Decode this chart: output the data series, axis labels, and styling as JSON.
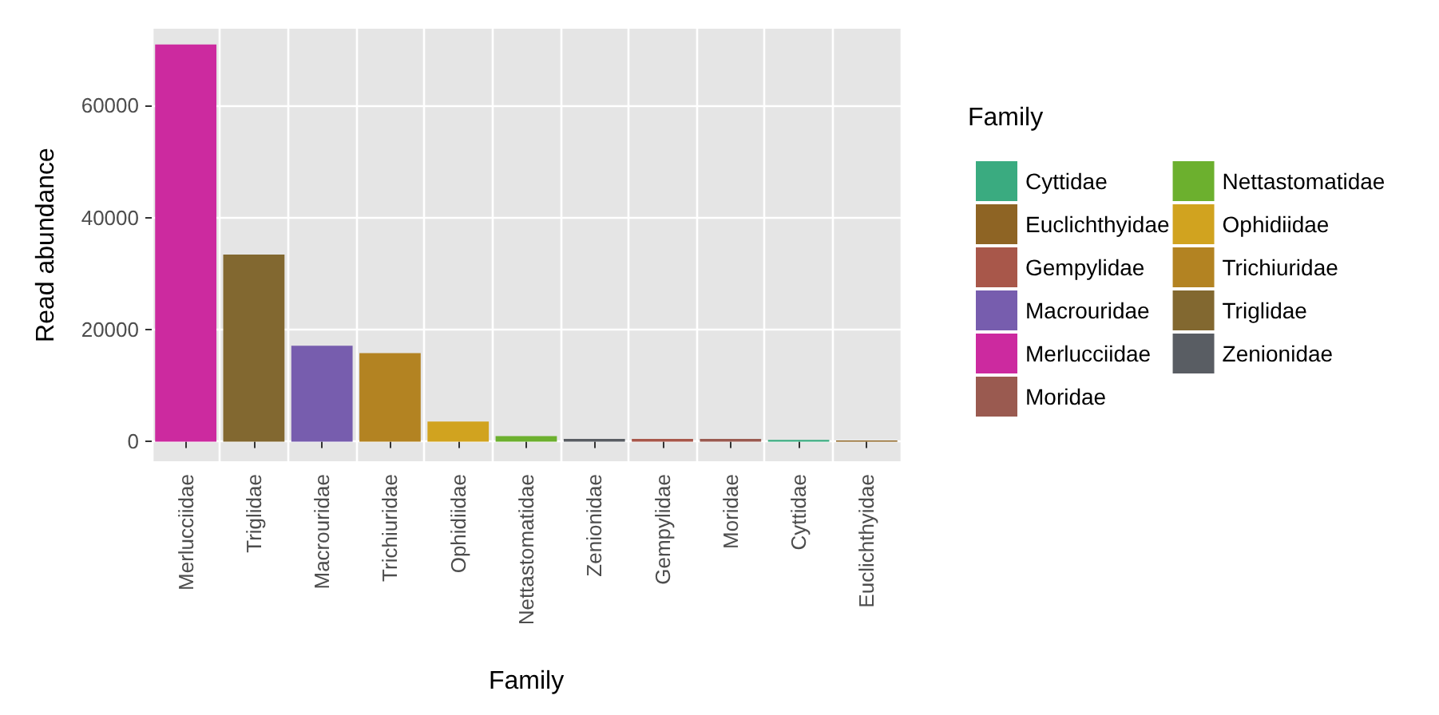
{
  "chart_data": {
    "type": "bar",
    "xlabel": "Family",
    "ylabel": "Read abundance",
    "legend_title": "Family",
    "categories": [
      "Merlucciidae",
      "Triglidae",
      "Macrouridae",
      "Trichiuridae",
      "Ophidiidae",
      "Nettastomatidae",
      "Zenionidae",
      "Gempylidae",
      "Moridae",
      "Cyttidae",
      "Euclichthyidae"
    ],
    "series": [
      {
        "name": "Cyttidae",
        "color": "#3aab80",
        "values": [
          null,
          null,
          null,
          null,
          null,
          null,
          null,
          null,
          null,
          300,
          null
        ]
      },
      {
        "name": "Euclichthyidae",
        "color": "#8e6424",
        "values": [
          null,
          null,
          null,
          null,
          null,
          null,
          null,
          null,
          null,
          null,
          200
        ]
      },
      {
        "name": "Gempylidae",
        "color": "#a8574a",
        "values": [
          null,
          null,
          null,
          null,
          null,
          null,
          null,
          500,
          null,
          null,
          null
        ]
      },
      {
        "name": "Macrouridae",
        "color": "#775dae",
        "values": [
          null,
          null,
          17100,
          null,
          null,
          null,
          null,
          null,
          null,
          null,
          null
        ]
      },
      {
        "name": "Merlucciidae",
        "color": "#cc2a9f",
        "values": [
          70900,
          null,
          null,
          null,
          null,
          null,
          null,
          null,
          null,
          null,
          null
        ]
      },
      {
        "name": "Moridae",
        "color": "#9a5a50",
        "values": [
          null,
          null,
          null,
          null,
          null,
          null,
          null,
          null,
          500,
          null,
          null
        ]
      },
      {
        "name": "Nettastomatidae",
        "color": "#6cb02e",
        "values": [
          null,
          null,
          null,
          null,
          null,
          1000,
          null,
          null,
          null,
          null,
          null
        ]
      },
      {
        "name": "Ophidiidae",
        "color": "#d1a31f",
        "values": [
          null,
          null,
          null,
          null,
          3600,
          null,
          null,
          null,
          null,
          null,
          null
        ]
      },
      {
        "name": "Trichiuridae",
        "color": "#b38322",
        "values": [
          null,
          null,
          null,
          15800,
          null,
          null,
          null,
          null,
          null,
          null,
          null
        ]
      },
      {
        "name": "Triglidae",
        "color": "#826830",
        "values": [
          null,
          33400,
          null,
          null,
          null,
          null,
          null,
          null,
          null,
          null,
          null
        ]
      },
      {
        "name": "Zenionidae",
        "color": "#595d63",
        "values": [
          null,
          null,
          null,
          null,
          null,
          null,
          500,
          null,
          null,
          null,
          null
        ]
      }
    ],
    "ylim": [
      -3500,
      73700
    ],
    "yticks": [
      0,
      20000,
      40000,
      60000
    ],
    "grid": true,
    "legend": "right"
  }
}
